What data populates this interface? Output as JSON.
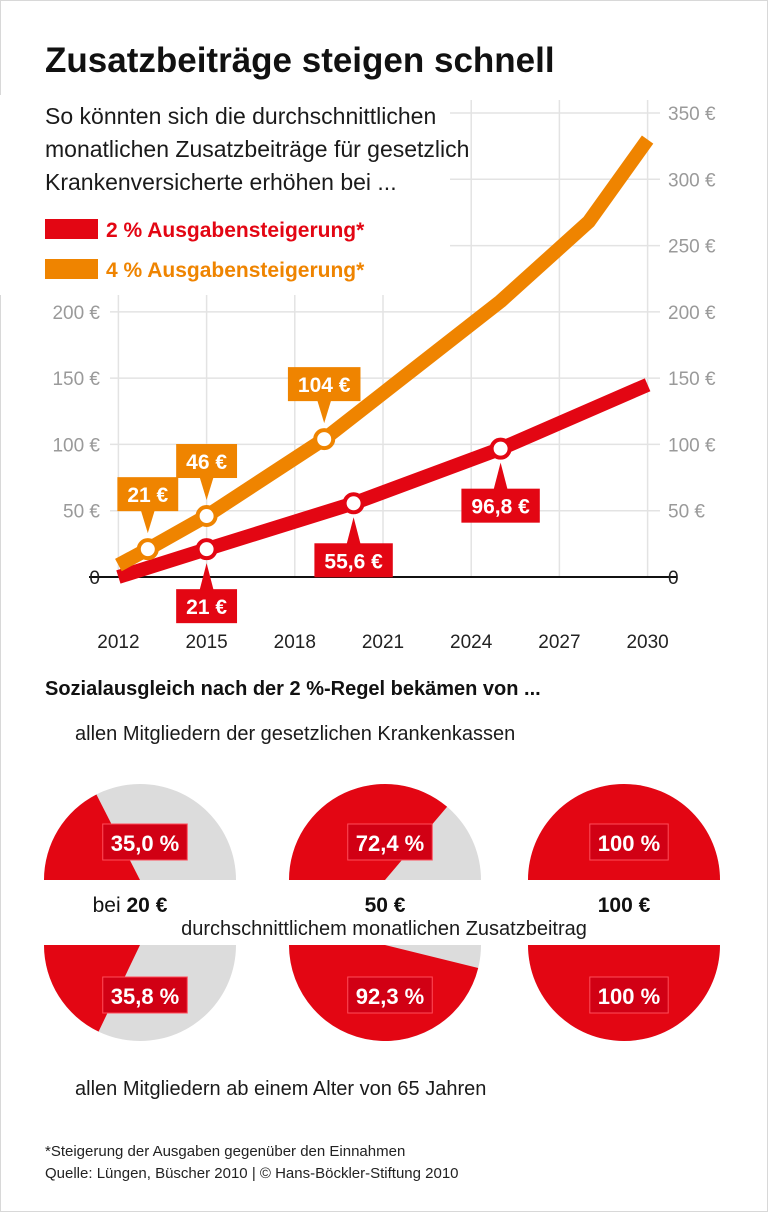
{
  "chart_data": [
    {
      "type": "line",
      "title": "Zusatzbeiträge steigen schnell",
      "subtitle": "So könnten sich die durchschnittlichen monatlichen Zusatzbeiträge für gesetzlich Krankenversicherte erhöhen bei ...",
      "xlim": [
        2011,
        2031
      ],
      "xticks": [
        2012,
        2015,
        2018,
        2021,
        2024,
        2027,
        2030
      ],
      "ylim": [
        0,
        350
      ],
      "yticks": [
        0,
        {
          "value": 50,
          "label": "50 €"
        },
        {
          "value": 100,
          "label": "100 €"
        },
        {
          "value": 150,
          "label": "150 €"
        },
        {
          "value": 200,
          "label": "200 €"
        }
      ],
      "y2lim": [
        0,
        350
      ],
      "y2ticks": [
        0,
        {
          "value": 50,
          "label": "50 €"
        },
        {
          "value": 100,
          "label": "100 €"
        },
        {
          "value": 150,
          "label": "150 €"
        },
        {
          "value": 200,
          "label": "200 €"
        },
        {
          "value": 250,
          "label": "250 €"
        },
        {
          "value": 300,
          "label": "300 €"
        },
        {
          "value": 350,
          "label": "350 €"
        }
      ],
      "grid": true,
      "series": [
        {
          "name": "2 % Ausgabensteigerung*",
          "color": "#e30613",
          "label_position": "below",
          "x": [
            2012,
            2015,
            2020,
            2025,
            2030
          ],
          "values": [
            0,
            21,
            55.6,
            96.8,
            145
          ],
          "value_labels": [
            null,
            "21 €",
            "55,6 €",
            "96,8 €",
            null
          ]
        },
        {
          "name": "4 % Ausgabensteigerung*",
          "color": "#ef8400",
          "label_position": "above",
          "x": [
            2012,
            2013,
            2015,
            2019,
            2022,
            2025,
            2028,
            2030
          ],
          "values": [
            9,
            21,
            46,
            104,
            156,
            208,
            268,
            330
          ],
          "value_labels": [
            null,
            "21 €",
            "46 €",
            "104 €",
            null,
            null,
            null,
            null
          ]
        }
      ],
      "footnote": "*Steigerung der Ausgaben gegenüber den Einnahmen",
      "source": "Quelle: Lüngen, Büscher 2010 | © Hans-Böckler-Stiftung 2010"
    },
    {
      "type": "pie",
      "title": "Sozialausgleich nach der 2 %-Regel bekämen von ...",
      "prefix": "bei",
      "categories": [
        "20 €",
        "50 €",
        "100 €"
      ],
      "category_note": "durchschnittlichem monatlichen Zusatzbeitrag",
      "rest_color": "#dcdcdc",
      "series": [
        {
          "name": "allen Mitgliedern der gesetzlichen Krankenkassen",
          "color": "#e30613",
          "values": [
            35.0,
            72.4,
            100
          ],
          "value_labels": [
            "35,0 %",
            "72,4 %",
            "100 %"
          ]
        },
        {
          "name": "allen Mitgliedern ab einem Alter von 65 Jahren",
          "color": "#e30613",
          "values": [
            35.8,
            92.3,
            100
          ],
          "value_labels": [
            "35,8 %",
            "92,3 %",
            "100 %"
          ]
        }
      ]
    }
  ]
}
